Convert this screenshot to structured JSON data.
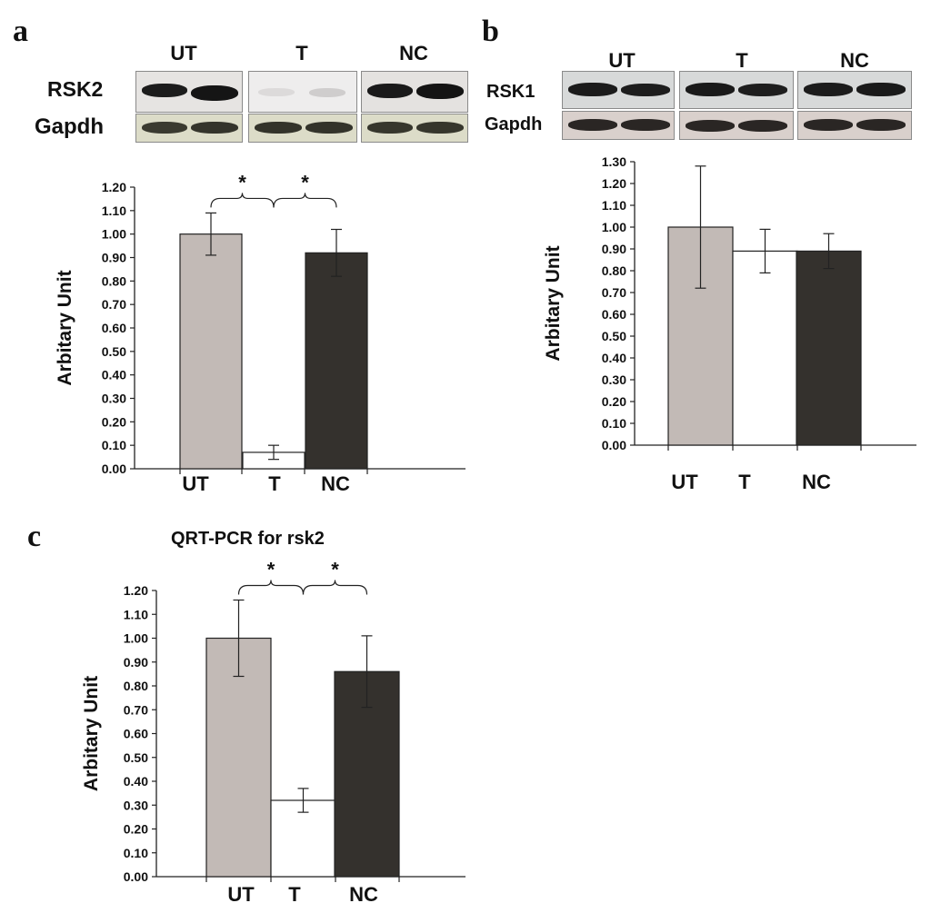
{
  "panels": {
    "a": {
      "letter": "a",
      "blot": {
        "groups": [
          "UT",
          "T",
          "NC"
        ],
        "rows": [
          "RSK2",
          "Gapdh"
        ]
      }
    },
    "b": {
      "letter": "b",
      "blot": {
        "groups": [
          "UT",
          "T",
          "NC"
        ],
        "rows": [
          "RSK1",
          "Gapdh"
        ]
      }
    },
    "c": {
      "letter": "c",
      "title": "QRT-PCR for rsk2"
    }
  },
  "colors": {
    "UT": "#c2bab6",
    "T": "#ffffff",
    "NC": "#34312d"
  },
  "chart_data": [
    {
      "panel": "a",
      "type": "bar",
      "categories": [
        "UT",
        "T",
        "NC"
      ],
      "values": [
        1.0,
        0.07,
        0.92
      ],
      "errors": [
        0.09,
        0.03,
        0.1
      ],
      "ylabel": "Arbitary Unit",
      "ylim": [
        0,
        1.2
      ],
      "yticks": [
        "0.00",
        "0.10",
        "0.20",
        "0.30",
        "0.40",
        "0.50",
        "0.60",
        "0.70",
        "0.80",
        "0.90",
        "1.00",
        "1.10",
        "1.20"
      ],
      "significance": [
        "*",
        "*"
      ]
    },
    {
      "panel": "b",
      "type": "bar",
      "categories": [
        "UT",
        "T",
        "NC"
      ],
      "values": [
        1.0,
        0.89,
        0.89
      ],
      "errors": [
        0.28,
        0.1,
        0.08
      ],
      "ylabel": "Arbitary Unit",
      "ylim": [
        0,
        1.3
      ],
      "yticks": [
        "0.00",
        "0.10",
        "0.20",
        "0.30",
        "0.40",
        "0.50",
        "0.60",
        "0.70",
        "0.80",
        "0.90",
        "1.00",
        "1.10",
        "1.20",
        "1.30"
      ]
    },
    {
      "panel": "c",
      "type": "bar",
      "title": "QRT-PCR for rsk2",
      "categories": [
        "UT",
        "T",
        "NC"
      ],
      "values": [
        1.0,
        0.32,
        0.86
      ],
      "errors": [
        0.16,
        0.05,
        0.15
      ],
      "ylabel": "Arbitary Unit",
      "ylim": [
        0,
        1.2
      ],
      "yticks": [
        "0.00",
        "0.10",
        "0.20",
        "0.30",
        "0.40",
        "0.50",
        "0.60",
        "0.70",
        "0.80",
        "0.90",
        "1.00",
        "1.10",
        "1.20"
      ],
      "significance": [
        "*",
        "*"
      ]
    }
  ]
}
